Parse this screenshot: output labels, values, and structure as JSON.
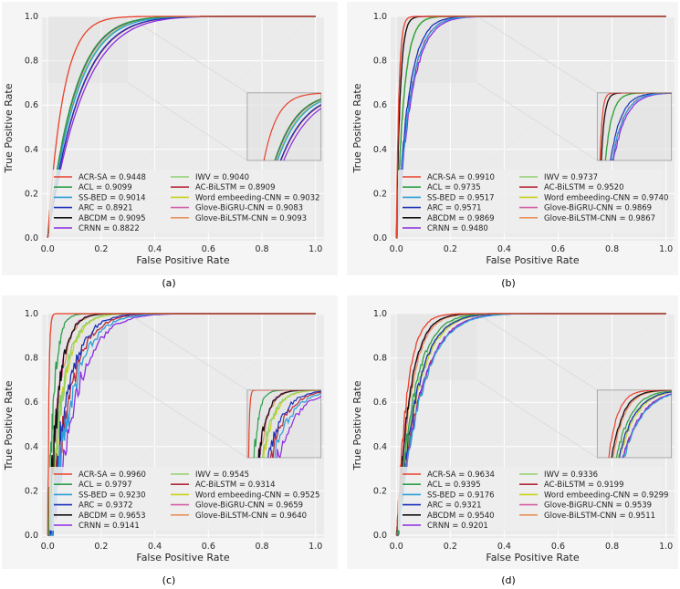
{
  "figure": {
    "panel_labels": [
      "(a)",
      "(b)",
      "(c)",
      "(d)"
    ]
  },
  "colors": {
    "ACR-SA": "#e8412b",
    "ACL": "#2e9e4a",
    "SS-BED": "#2b9fd9",
    "ARC": "#1a2fb8",
    "ABCDM": "#111111",
    "CRNN": "#8b2be2",
    "IWV": "#8fd16f",
    "AC-BiLSTM": "#b5283a",
    "Word embeeding-CNN": "#c9d11a",
    "Glove-BiGRU-CNN": "#d45ca8",
    "Glove-BiLSTM-CNN": "#e8915a"
  },
  "chart_data": [
    {
      "type": "line",
      "panel": "(a)",
      "xlabel": "False Positive Rate",
      "ylabel": "True Positive Rate",
      "xlim": [
        0,
        1
      ],
      "ylim": [
        0,
        1
      ],
      "xticks": [
        "0.0",
        "0.2",
        "0.4",
        "0.6",
        "0.8",
        "1.0"
      ],
      "yticks": [
        "0.0",
        "0.2",
        "0.4",
        "0.6",
        "0.8",
        "1.0"
      ],
      "grid": true,
      "legend_placement": "lower-right",
      "series": [
        {
          "name": "ACR-SA",
          "value": "0.9448"
        },
        {
          "name": "ACL",
          "value": "0.9099"
        },
        {
          "name": "SS-BED",
          "value": "0.9014"
        },
        {
          "name": "ARC",
          "value": "0.8921"
        },
        {
          "name": "ABCDM",
          "value": "0.9095"
        },
        {
          "name": "CRNN",
          "value": "0.8822"
        },
        {
          "name": "IWV",
          "value": "0.9040"
        },
        {
          "name": "AC-BiLSTM",
          "value": "0.8909"
        },
        {
          "name": "Word embeeding-CNN",
          "value": "0.9032"
        },
        {
          "name": "Glove-BiGRU-CNN",
          "value": "0.9083"
        },
        {
          "name": "Glove-BiLSTM-CNN",
          "value": "0.9093"
        }
      ]
    },
    {
      "type": "line",
      "panel": "(b)",
      "xlabel": "False Positive Rate",
      "ylabel": "True Positive Rate",
      "xlim": [
        0,
        1
      ],
      "ylim": [
        0,
        1
      ],
      "xticks": [
        "0.0",
        "0.2",
        "0.4",
        "0.6",
        "0.8",
        "1.0"
      ],
      "yticks": [
        "0.0",
        "0.2",
        "0.4",
        "0.6",
        "0.8",
        "1.0"
      ],
      "grid": true,
      "legend_placement": "lower-right",
      "series": [
        {
          "name": "ACR-SA",
          "value": "0.9910"
        },
        {
          "name": "ACL",
          "value": "0.9735"
        },
        {
          "name": "SS-BED",
          "value": "0.9517"
        },
        {
          "name": "ARC",
          "value": "0.9571"
        },
        {
          "name": "ABCDM",
          "value": "0.9869"
        },
        {
          "name": "CRNN",
          "value": "0.9480"
        },
        {
          "name": "IWV",
          "value": "0.9737"
        },
        {
          "name": "AC-BiLSTM",
          "value": "0.9520"
        },
        {
          "name": "Word embeeding-CNN",
          "value": "0.9740"
        },
        {
          "name": "Glove-BiGRU-CNN",
          "value": "0.9869"
        },
        {
          "name": "Glove-BiLSTM-CNN",
          "value": "0.9867"
        }
      ]
    },
    {
      "type": "line",
      "panel": "(c)",
      "xlabel": "False Positive Rate",
      "ylabel": "True Positive Rate",
      "xlim": [
        0,
        1
      ],
      "ylim": [
        0,
        1
      ],
      "xticks": [
        "0.0",
        "0.2",
        "0.4",
        "0.6",
        "0.8",
        "1.0"
      ],
      "yticks": [
        "0.0",
        "0.2",
        "0.4",
        "0.6",
        "0.8",
        "1.0"
      ],
      "grid": true,
      "legend_placement": "lower-right",
      "series": [
        {
          "name": "ACR-SA",
          "value": "0.9960"
        },
        {
          "name": "ACL",
          "value": "0.9797"
        },
        {
          "name": "SS-BED",
          "value": "0.9230"
        },
        {
          "name": "ARC",
          "value": "0.9372"
        },
        {
          "name": "ABCDM",
          "value": "0.9653"
        },
        {
          "name": "CRNN",
          "value": "0.9141"
        },
        {
          "name": "IWV",
          "value": "0.9545"
        },
        {
          "name": "AC-BiLSTM",
          "value": "0.9314"
        },
        {
          "name": "Word embeeding-CNN",
          "value": "0.9525"
        },
        {
          "name": "Glove-BiGRU-CNN",
          "value": "0.9659"
        },
        {
          "name": "Glove-BiLSTM-CNN",
          "value": "0.9640"
        }
      ]
    },
    {
      "type": "line",
      "panel": "(d)",
      "xlabel": "False Positive Rate",
      "ylabel": "True Positive Rate",
      "xlim": [
        0,
        1
      ],
      "ylim": [
        0,
        1
      ],
      "xticks": [
        "0.0",
        "0.2",
        "0.4",
        "0.6",
        "0.8",
        "1.0"
      ],
      "yticks": [
        "0.0",
        "0.2",
        "0.4",
        "0.6",
        "0.8",
        "1.0"
      ],
      "grid": true,
      "legend_placement": "lower-right",
      "series": [
        {
          "name": "ACR-SA",
          "value": "0.9634"
        },
        {
          "name": "ACL",
          "value": "0.9395"
        },
        {
          "name": "SS-BED",
          "value": "0.9176"
        },
        {
          "name": "ARC",
          "value": "0.9321"
        },
        {
          "name": "ABCDM",
          "value": "0.9540"
        },
        {
          "name": "CRNN",
          "value": "0.9201"
        },
        {
          "name": "IWV",
          "value": "0.9336"
        },
        {
          "name": "AC-BiLSTM",
          "value": "0.9199"
        },
        {
          "name": "Word embeeding-CNN",
          "value": "0.9299"
        },
        {
          "name": "Glove-BiGRU-CNN",
          "value": "0.9539"
        },
        {
          "name": "Glove-BiLSTM-CNN",
          "value": "0.9511"
        }
      ]
    }
  ]
}
